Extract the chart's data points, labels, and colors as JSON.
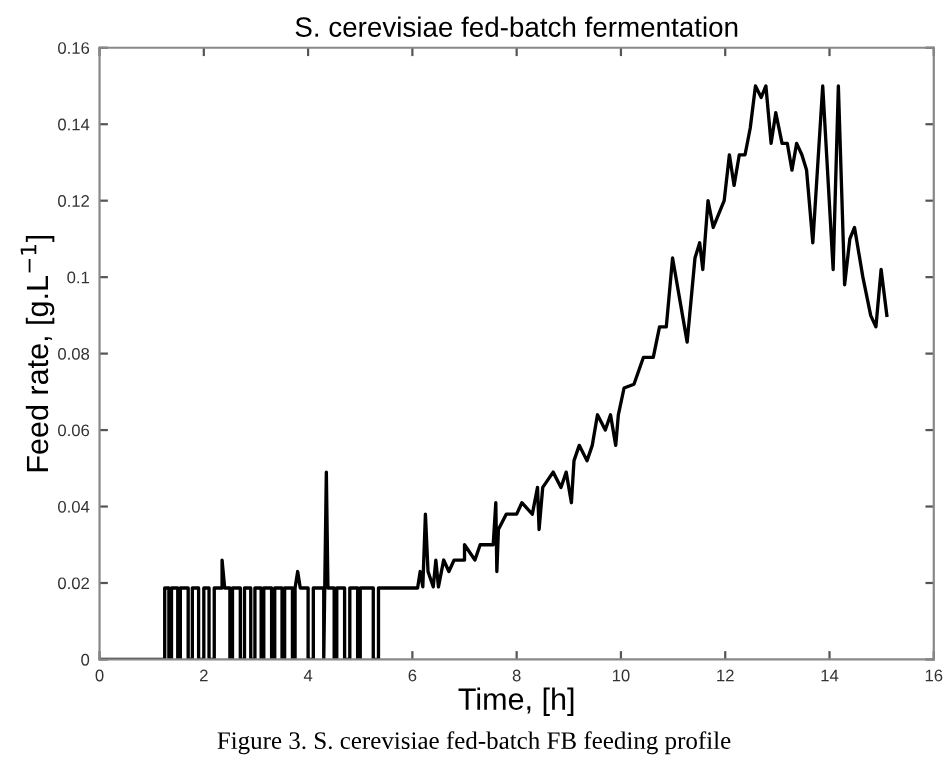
{
  "chart_data": {
    "type": "line",
    "title": "S. cerevisiae fed-batch fermentation",
    "xlabel": "Time, [h]",
    "ylabel": "Feed rate, [g.L$^{−1}$]",
    "annotations": [
      "Figure 3. S. cerevisiae fed-batch FB feeding profile"
    ],
    "xlim": [
      0,
      16
    ],
    "ylim": [
      0,
      0.16
    ],
    "xticks": [
      0,
      2,
      4,
      6,
      8,
      10,
      12,
      14,
      16
    ],
    "yticks": [
      0,
      0.02,
      0.04,
      0.06,
      0.08,
      0.1,
      0.12,
      0.14,
      0.16
    ],
    "grid": false,
    "legend": false,
    "marker": "none",
    "line_style": "solid",
    "series": [
      {
        "color": "#000000",
        "x": [
          0,
          1.25,
          1.25,
          1.33,
          1.33,
          1.38,
          1.38,
          1.5,
          1.5,
          1.55,
          1.55,
          1.7,
          1.7,
          1.78,
          1.78,
          1.9,
          1.9,
          2.0,
          2.0,
          2.1,
          2.1,
          2.2,
          2.2,
          2.35,
          2.35,
          2.4,
          2.5,
          2.5,
          2.55,
          2.55,
          2.7,
          2.7,
          2.78,
          2.78,
          2.9,
          2.9,
          2.98,
          2.98,
          3.1,
          3.1,
          3.15,
          3.15,
          3.3,
          3.3,
          3.36,
          3.36,
          3.5,
          3.5,
          3.55,
          3.55,
          3.7,
          3.7,
          3.75,
          3.75,
          3.8,
          3.85,
          4.0,
          4.0,
          4.1,
          4.1,
          4.3,
          4.3,
          4.35,
          4.38,
          4.5,
          4.5,
          4.55,
          4.55,
          4.7,
          4.7,
          4.8,
          4.8,
          4.95,
          4.95,
          5.0,
          5.0,
          5.25,
          5.25,
          5.35,
          5.35,
          6.1,
          6.15,
          6.2,
          6.25,
          6.3,
          6.4,
          6.45,
          6.5,
          6.6,
          6.7,
          6.8,
          7.0,
          7.0,
          7.2,
          7.3,
          7.55,
          7.6,
          7.62,
          7.65,
          7.8,
          8.0,
          8.1,
          8.3,
          8.4,
          8.43,
          8.5,
          8.7,
          8.85,
          8.95,
          9.05,
          9.1,
          9.2,
          9.35,
          9.45,
          9.55,
          9.7,
          9.8,
          9.9,
          9.95,
          10.06,
          10.25,
          10.43,
          10.62,
          10.74,
          10.87,
          10.99,
          11.27,
          11.42,
          11.51,
          11.57,
          11.67,
          11.77,
          11.98,
          12.08,
          12.17,
          12.27,
          12.38,
          12.48,
          12.58,
          12.69,
          12.78,
          12.88,
          12.97,
          13.09,
          13.19,
          13.28,
          13.37,
          13.47,
          13.56,
          13.68,
          13.87,
          14.07,
          14.17,
          14.29,
          14.39,
          14.48,
          14.64,
          14.79,
          14.89,
          14.99,
          15.1
        ],
        "values": [
          0,
          0,
          0.0187,
          0.0187,
          0,
          0,
          0.0187,
          0.0187,
          0,
          0,
          0.0187,
          0.0187,
          0,
          0,
          0.0187,
          0.0187,
          0,
          0,
          0.0187,
          0.0187,
          0,
          0,
          0.0187,
          0.0187,
          0.026,
          0.0187,
          0.0187,
          0,
          0,
          0.0187,
          0.0187,
          0,
          0,
          0.0187,
          0.0187,
          0,
          0,
          0.0187,
          0.0187,
          0,
          0,
          0.0187,
          0.0187,
          0,
          0,
          0.0187,
          0.0187,
          0,
          0,
          0.0187,
          0.0187,
          0,
          0,
          0.0187,
          0.023,
          0.0187,
          0.0187,
          0,
          0,
          0.0187,
          0.0187,
          0,
          0.049,
          0.0187,
          0.0187,
          0,
          0,
          0.0187,
          0.0187,
          0,
          0,
          0.0187,
          0.0187,
          0,
          0,
          0.0187,
          0.0187,
          0,
          0,
          0.0187,
          0.0187,
          0.023,
          0.019,
          0.038,
          0.023,
          0.019,
          0.026,
          0.019,
          0.026,
          0.023,
          0.026,
          0.026,
          0.03,
          0.026,
          0.03,
          0.03,
          0.041,
          0.023,
          0.034,
          0.038,
          0.038,
          0.041,
          0.038,
          0.045,
          0.034,
          0.045,
          0.049,
          0.045,
          0.049,
          0.041,
          0.052,
          0.056,
          0.052,
          0.056,
          0.064,
          0.06,
          0.064,
          0.056,
          0.064,
          0.071,
          0.072,
          0.079,
          0.079,
          0.087,
          0.087,
          0.105,
          0.083,
          0.105,
          0.109,
          0.102,
          0.12,
          0.113,
          0.12,
          0.132,
          0.124,
          0.132,
          0.132,
          0.139,
          0.15,
          0.147,
          0.15,
          0.135,
          0.143,
          0.135,
          0.135,
          0.128,
          0.135,
          0.132,
          0.128,
          0.109,
          0.15,
          0.102,
          0.15,
          0.098,
          0.11,
          0.113,
          0.1,
          0.09,
          0.087,
          0.102,
          0.09
        ]
      }
    ]
  }
}
